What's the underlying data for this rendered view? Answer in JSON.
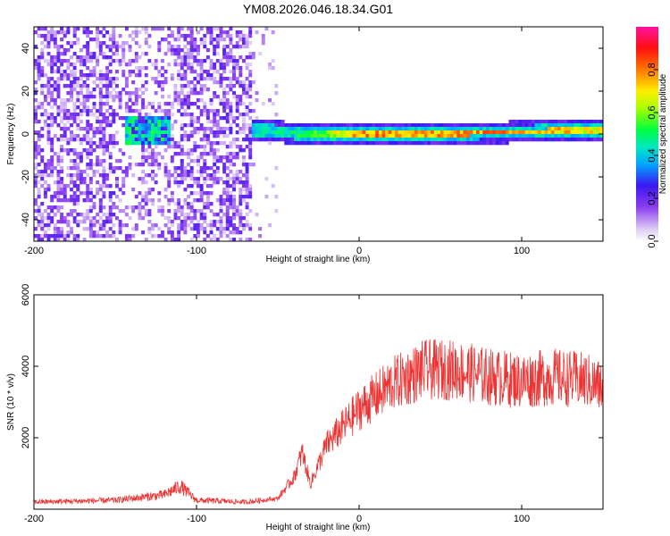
{
  "title": "YM08.2026.046.18.34.G01",
  "chart_data": [
    {
      "type": "heatmap",
      "xlabel": "Height of straight line (km)",
      "ylabel": "Frequency (Hz)",
      "xlim": [
        -200,
        150
      ],
      "ylim": [
        -50,
        50
      ],
      "xticks": [
        -200,
        -100,
        0,
        100
      ],
      "yticks": [
        -40,
        -20,
        0,
        20,
        40
      ],
      "colorbar": {
        "label": "Normalized spectral amplitude",
        "range": [
          0,
          1
        ],
        "ticks": [
          "0.0",
          "0.2",
          "0.4",
          "0.6",
          "0.8"
        ],
        "colormap": "rainbow (purple-blue-cyan-green-yellow-red-magenta)"
      },
      "description_data": {
        "noise_region_x": [
          -200,
          -65
        ],
        "signal_track": [
          {
            "x": -65,
            "freq": 2,
            "amp": 0.45
          },
          {
            "x": -50,
            "freq": 1,
            "amp": 0.5
          },
          {
            "x": -30,
            "freq": 0,
            "amp": 0.55
          },
          {
            "x": 0,
            "freq": 0,
            "amp": 0.85
          },
          {
            "x": 50,
            "freq": 0,
            "amp": 0.8
          },
          {
            "x": 100,
            "freq": 1,
            "amp": 0.85
          },
          {
            "x": 150,
            "freq": 2,
            "amp": 0.7
          }
        ],
        "cluster": {
          "x_range": [
            -145,
            -115
          ],
          "freq_range": [
            -5,
            8
          ],
          "amp": 0.35
        }
      }
    },
    {
      "type": "line",
      "xlabel": "Height of straight line (km)",
      "ylabel": "SNR (10 * v/v)",
      "xlim": [
        -200,
        150
      ],
      "ylim": [
        0,
        6000
      ],
      "xticks": [
        -200,
        -100,
        0,
        100
      ],
      "yticks": [
        2000,
        4000,
        6000
      ],
      "series": [
        {
          "color": "#ee3333",
          "envelope": [
            {
              "x": -200,
              "y": 200
            },
            {
              "x": -150,
              "y": 250
            },
            {
              "x": -120,
              "y": 400
            },
            {
              "x": -110,
              "y": 650
            },
            {
              "x": -100,
              "y": 250
            },
            {
              "x": -70,
              "y": 200
            },
            {
              "x": -50,
              "y": 300
            },
            {
              "x": -40,
              "y": 900
            },
            {
              "x": -35,
              "y": 1600
            },
            {
              "x": -30,
              "y": 700
            },
            {
              "x": -20,
              "y": 1800
            },
            {
              "x": 0,
              "y": 2800
            },
            {
              "x": 20,
              "y": 3500
            },
            {
              "x": 40,
              "y": 3900
            },
            {
              "x": 60,
              "y": 3900
            },
            {
              "x": 80,
              "y": 3700
            },
            {
              "x": 100,
              "y": 3600
            },
            {
              "x": 120,
              "y": 3700
            },
            {
              "x": 140,
              "y": 3600
            },
            {
              "x": 150,
              "y": 3400
            }
          ]
        }
      ]
    }
  ]
}
